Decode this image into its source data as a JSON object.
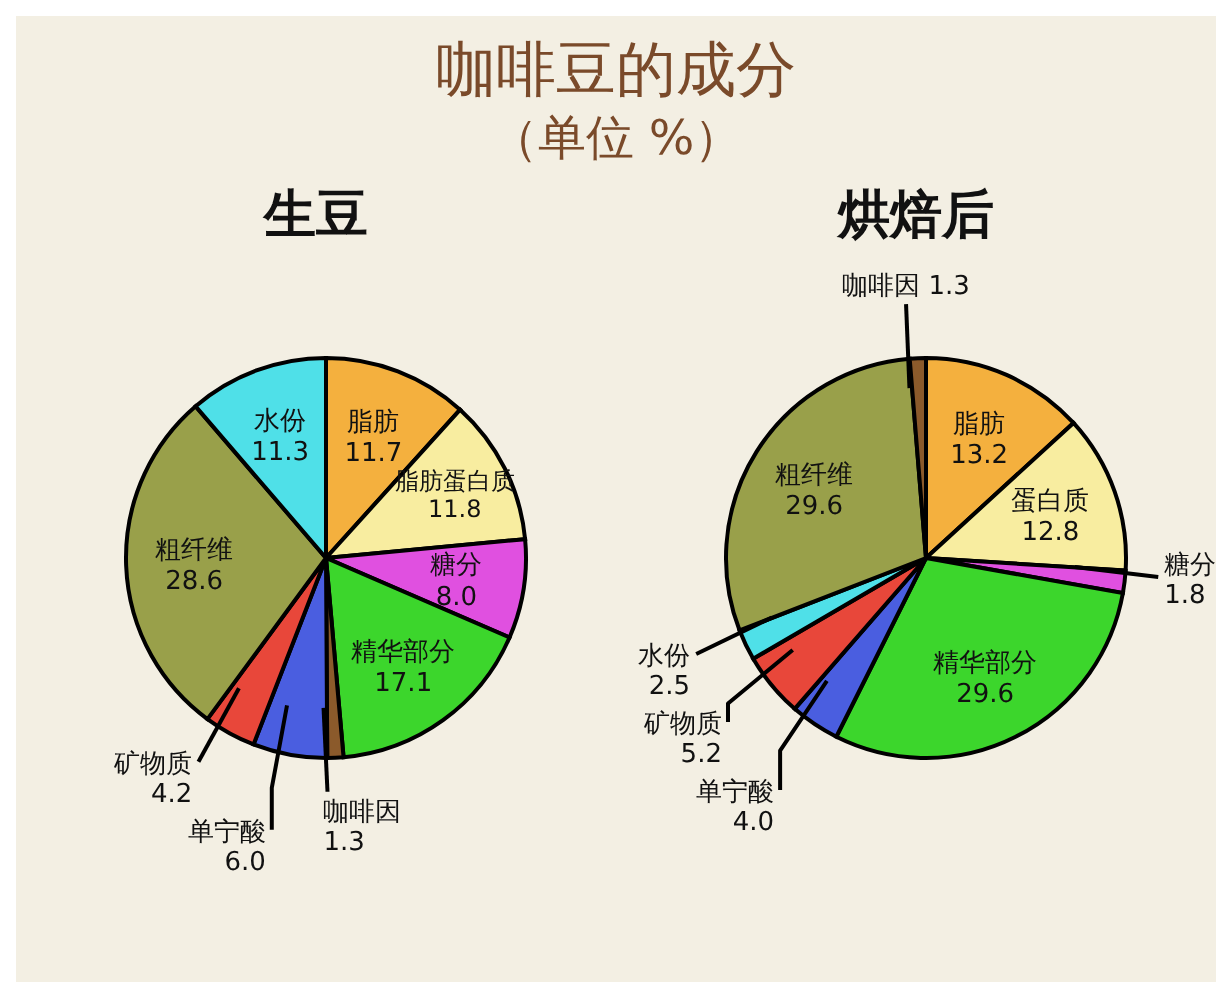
{
  "chart_data": [
    {
      "type": "pie",
      "title": "生豆",
      "annotations": [
        "咖啡豆的成分",
        "（单位 %）"
      ],
      "categories": [
        "脂肪",
        "脂肪蛋白质",
        "糖分",
        "精华部分",
        "咖啡因",
        "单宁酸",
        "矿物质",
        "粗纤维",
        "水份"
      ],
      "values": [
        11.7,
        11.8,
        8.0,
        17.1,
        1.3,
        6.0,
        4.2,
        28.6,
        11.3
      ],
      "value_labels": [
        "11.7",
        "11.8",
        "8.0",
        "17.1",
        "1.3",
        "6.0",
        "4.2",
        "28.6",
        "11.3"
      ],
      "colors": [
        "#f4b03e",
        "#f8eda0",
        "#e050e0",
        "#3cd62c",
        "#8b5a2b",
        "#4a5ee0",
        "#e8473a",
        "#99a04a",
        "#4fe0e8"
      ],
      "legend": false
    },
    {
      "type": "pie",
      "title": "烘焙后",
      "categories": [
        "脂肪",
        "蛋白质",
        "糖分",
        "精华部分",
        "单宁酸",
        "矿物质",
        "水份",
        "粗纤维",
        "咖啡因"
      ],
      "values": [
        13.2,
        12.8,
        1.8,
        29.6,
        4.0,
        5.2,
        2.5,
        29.6,
        1.3
      ],
      "value_labels": [
        "13.2",
        "12.8",
        "1.8",
        "29.6",
        "4.0",
        "5.2",
        "2.5",
        "29.6",
        "1.3"
      ],
      "colors": [
        "#f4b03e",
        "#f8eda0",
        "#e050e0",
        "#3cd62c",
        "#4a5ee0",
        "#e8473a",
        "#4fe0e8",
        "#99a04a",
        "#8b5a2b"
      ],
      "legend": false
    }
  ]
}
